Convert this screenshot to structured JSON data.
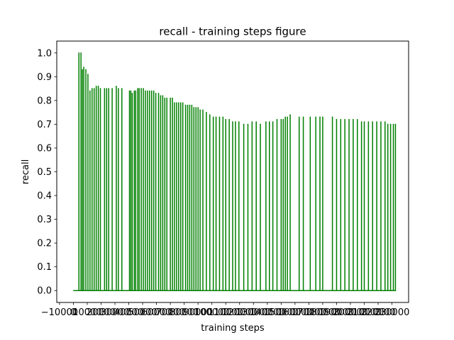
{
  "chart_data": {
    "type": "line",
    "title": "recall - training steps figure",
    "xlabel": "training steps",
    "ylabel": "recall",
    "xlim": [
      -12000,
      242000
    ],
    "ylim": [
      -0.05,
      1.05
    ],
    "x_ticks": [
      -10000,
      0,
      10000,
      20000,
      30000,
      40000,
      50000,
      60000,
      70000,
      80000,
      90000,
      100000,
      110000,
      120000,
      130000,
      140000,
      150000,
      160000,
      170000,
      180000,
      190000,
      200000,
      210000,
      220000,
      230000
    ],
    "x_tick_labels": [
      "−10000",
      "0",
      "10000",
      "20000",
      "30000",
      "40000",
      "50000",
      "60000",
      "70000",
      "80000",
      "90000",
      "100000",
      "110000",
      "120000",
      "130000",
      "140000",
      "150000",
      "160000",
      "170000",
      "180000",
      "190000",
      "200000",
      "210000",
      "220000",
      "230000"
    ],
    "y_ticks": [
      0.0,
      0.1,
      0.2,
      0.3,
      0.4,
      0.5,
      0.6,
      0.7,
      0.8,
      0.9,
      1.0
    ],
    "y_tick_labels": [
      "0.0",
      "0.1",
      "0.2",
      "0.3",
      "0.4",
      "0.5",
      "0.6",
      "0.7",
      "0.8",
      "0.9",
      "1.0"
    ],
    "grid": false,
    "legend": "none",
    "series": [
      {
        "color": "#008000",
        "baseline": 0.0,
        "note_style": "recall spikes from 0 baseline at each evaluation step",
        "x": [
          4000,
          5500,
          6500,
          7500,
          9000,
          10500,
          12000,
          13500,
          15000,
          16500,
          18000,
          19500,
          22500,
          24000,
          25500,
          28000,
          31000,
          32500,
          35000,
          40500,
          41500,
          42500,
          44000,
          45000,
          46500,
          47500,
          49000,
          50500,
          52000,
          53500,
          55000,
          56500,
          58000,
          59500,
          61500,
          63000,
          64500,
          66000,
          67500,
          70000,
          71500,
          73000,
          74500,
          76000,
          77500,
          79000,
          81000,
          82500,
          84000,
          85500,
          87000,
          88500,
          90000,
          91500,
          93500,
          96000,
          98500,
          101000,
          103000,
          105500,
          108000,
          110000,
          112500,
          115000,
          117000,
          119500,
          123000,
          126000,
          129000,
          132000,
          135000,
          139000,
          141500,
          144000,
          147000,
          150000,
          151500,
          153000,
          154500,
          156500,
          163000,
          166000,
          171000,
          175000,
          178000,
          180000,
          187000,
          190000,
          193000,
          196000,
          199000,
          202000,
          205000,
          208000,
          210000,
          213000,
          216000,
          219000,
          222000,
          225000,
          227000,
          229000,
          231000,
          232500
        ],
        "y": [
          1.0,
          1.0,
          0.93,
          0.94,
          0.93,
          0.91,
          0.84,
          0.85,
          0.85,
          0.86,
          0.86,
          0.85,
          0.85,
          0.85,
          0.85,
          0.85,
          0.86,
          0.85,
          0.85,
          0.84,
          0.84,
          0.83,
          0.84,
          0.84,
          0.85,
          0.85,
          0.85,
          0.85,
          0.84,
          0.84,
          0.84,
          0.84,
          0.84,
          0.83,
          0.83,
          0.82,
          0.82,
          0.81,
          0.81,
          0.81,
          0.81,
          0.79,
          0.79,
          0.79,
          0.79,
          0.79,
          0.78,
          0.78,
          0.78,
          0.78,
          0.77,
          0.77,
          0.77,
          0.76,
          0.76,
          0.75,
          0.74,
          0.73,
          0.73,
          0.73,
          0.73,
          0.72,
          0.72,
          0.71,
          0.71,
          0.71,
          0.7,
          0.7,
          0.71,
          0.71,
          0.7,
          0.71,
          0.71,
          0.71,
          0.72,
          0.72,
          0.72,
          0.73,
          0.73,
          0.74,
          0.73,
          0.73,
          0.73,
          0.73,
          0.73,
          0.73,
          0.73,
          0.72,
          0.72,
          0.72,
          0.72,
          0.72,
          0.72,
          0.71,
          0.71,
          0.71,
          0.71,
          0.71,
          0.71,
          0.71,
          0.7,
          0.7,
          0.7,
          0.7
        ]
      }
    ]
  }
}
